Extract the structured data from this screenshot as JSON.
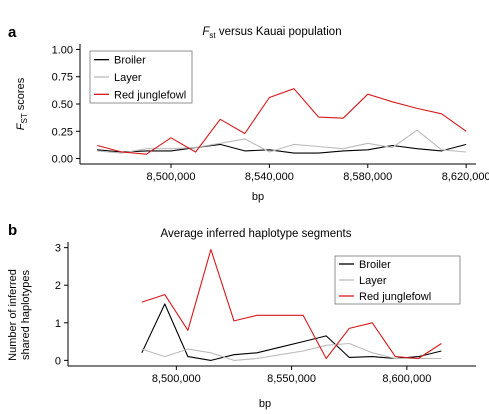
{
  "chart_data": [
    {
      "panel_label": "a",
      "type": "line",
      "title_main": "F",
      "title_sub": "st",
      "title_rest": " versus Kauai population",
      "xlabel": "bp",
      "ylabel_main": "F",
      "ylabel_sub": "ST",
      "ylabel_rest": " scores",
      "xlim": [
        8463000,
        8624000
      ],
      "ylim": [
        -0.05,
        1.05
      ],
      "xticks": [
        8500000,
        8540000,
        8580000,
        8620000
      ],
      "xtick_labels": [
        "8,500,000",
        "8,540,000",
        "8,580,000",
        "8,620,000"
      ],
      "yticks": [
        0,
        0.25,
        0.5,
        0.75,
        1
      ],
      "ytick_labels": [
        "0.00",
        "0.25",
        "0.50",
        "0.75",
        "1.00"
      ],
      "legend_position": "top-left",
      "series": [
        {
          "name": "Broiler",
          "color": "#000000",
          "x": [
            8470000,
            8480000,
            8490000,
            8500000,
            8510000,
            8520000,
            8530000,
            8540000,
            8550000,
            8560000,
            8570000,
            8580000,
            8590000,
            8600000,
            8610000,
            8620000
          ],
          "y": [
            0.08,
            0.06,
            0.07,
            0.07,
            0.1,
            0.13,
            0.07,
            0.08,
            0.05,
            0.05,
            0.07,
            0.08,
            0.12,
            0.09,
            0.07,
            0.13
          ]
        },
        {
          "name": "Layer",
          "color": "#bbbbbb",
          "x": [
            8470000,
            8480000,
            8490000,
            8500000,
            8510000,
            8520000,
            8530000,
            8540000,
            8550000,
            8560000,
            8570000,
            8580000,
            8590000,
            8600000,
            8610000,
            8620000
          ],
          "y": [
            0.07,
            0.05,
            0.09,
            0.09,
            0.1,
            0.14,
            0.18,
            0.06,
            0.13,
            0.11,
            0.09,
            0.14,
            0.1,
            0.26,
            0.08,
            0.06
          ]
        },
        {
          "name": "Red junglefowl",
          "color": "#d7191c",
          "x": [
            8470000,
            8480000,
            8490000,
            8500000,
            8510000,
            8520000,
            8530000,
            8540000,
            8550000,
            8560000,
            8570000,
            8580000,
            8590000,
            8600000,
            8610000,
            8620000
          ],
          "y": [
            0.12,
            0.06,
            0.04,
            0.19,
            0.06,
            0.36,
            0.23,
            0.56,
            0.64,
            0.38,
            0.37,
            0.59,
            0.52,
            0.46,
            0.41,
            0.25
          ]
        }
      ]
    },
    {
      "panel_label": "b",
      "type": "line",
      "title": "Average inferred haplotype segments",
      "xlabel": "bp",
      "ylabel_line1": "Number of inferred",
      "ylabel_line2": "shared haplotypes",
      "xlim": [
        8453000,
        8630000
      ],
      "ylim": [
        -0.15,
        3.15
      ],
      "xticks": [
        8500000,
        8550000,
        8600000
      ],
      "xtick_labels": [
        "8,500,000",
        "8,550,000",
        "8,600,000"
      ],
      "yticks": [
        0,
        1,
        2,
        3
      ],
      "ytick_labels": [
        "0",
        "1",
        "2",
        "3"
      ],
      "legend_position": "top-right",
      "series": [
        {
          "name": "Broiler",
          "color": "#000000",
          "x": [
            8485000,
            8495000,
            8505000,
            8515000,
            8525000,
            8535000,
            8545000,
            8555000,
            8565000,
            8575000,
            8585000,
            8595000,
            8605000,
            8615000
          ],
          "y": [
            0.2,
            1.5,
            0.1,
            0.0,
            0.15,
            0.2,
            0.35,
            0.5,
            0.65,
            0.08,
            0.1,
            0.05,
            0.1,
            0.25
          ]
        },
        {
          "name": "Layer",
          "color": "#bbbbbb",
          "x": [
            8485000,
            8495000,
            8505000,
            8515000,
            8525000,
            8535000,
            8545000,
            8555000,
            8565000,
            8575000,
            8585000,
            8595000,
            8605000,
            8615000
          ],
          "y": [
            0.3,
            0.1,
            0.3,
            0.2,
            0.0,
            0.05,
            0.15,
            0.25,
            0.4,
            0.45,
            0.2,
            0.05,
            0.05,
            0.05
          ]
        },
        {
          "name": "Red junglefowl",
          "color": "#d7191c",
          "x": [
            8485000,
            8495000,
            8505000,
            8515000,
            8525000,
            8535000,
            8545000,
            8555000,
            8565000,
            8575000,
            8585000,
            8595000,
            8605000,
            8615000
          ],
          "y": [
            1.55,
            1.75,
            0.8,
            2.95,
            1.05,
            1.2,
            1.2,
            1.2,
            0.05,
            0.85,
            1.0,
            0.1,
            0.05,
            0.45
          ]
        }
      ]
    }
  ]
}
